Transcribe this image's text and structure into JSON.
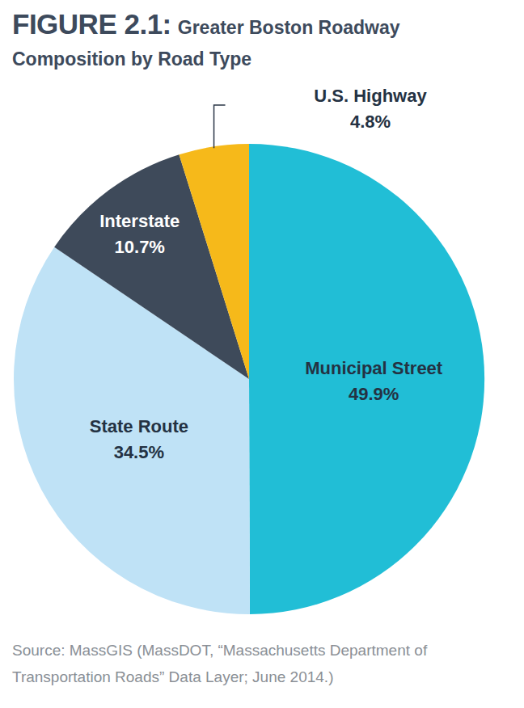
{
  "chart_data": {
    "type": "pie",
    "title": "FIGURE 2.1:",
    "subtitle": "Greater Boston Roadway Composition by Road Type",
    "categories": [
      "Municipal Street",
      "State Route",
      "Interstate",
      "U.S. Highway"
    ],
    "values": [
      49.9,
      34.5,
      10.7,
      4.8
    ],
    "value_labels": [
      "49.9%",
      "34.5%",
      "10.7%",
      "4.8%"
    ],
    "colors": [
      "#21bed6",
      "#bfe2f6",
      "#3e4a5a",
      "#f6b91a"
    ],
    "data_labels": true,
    "source": "Source: MassGIS (MassDOT, “Massachusetts Department of Transportation Roads” Data Layer; June 2014.)"
  }
}
